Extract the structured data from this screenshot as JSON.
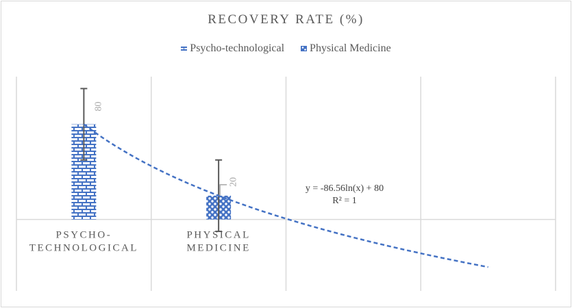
{
  "chart_data": {
    "type": "bar",
    "title": "RECOVERY RATE (%)",
    "categories": [
      "PSYCHO-\nTECHNOLOGICAL",
      "PHYSICAL\nMEDICINE",
      "",
      ""
    ],
    "category_lines": [
      [
        "PSYCHO-",
        "TECHNOLOGICAL"
      ],
      [
        "PHYSICAL",
        "MEDICINE"
      ]
    ],
    "series": [
      {
        "name": "Psycho-technological",
        "category_index": 0,
        "value": 80,
        "error": 30,
        "pattern": "brick",
        "color": "#4472c4",
        "data_label": "80"
      },
      {
        "name": "Physical Medicine",
        "category_index": 1,
        "value": 20,
        "error": 30,
        "pattern": "checker",
        "color": "#4472c4",
        "data_label": "20"
      }
    ],
    "trendline": {
      "type": "logarithmic",
      "a": -86.56,
      "b": 80,
      "equation": "y = -86.56ln(x) + 80",
      "r_squared": "R² = 1",
      "x_range": [
        1,
        4
      ],
      "color": "#4472c4",
      "style": "dashed"
    },
    "xlabel": "",
    "ylabel": "",
    "ylim": [
      -60,
      120
    ],
    "y_axis_visible": false,
    "grid": {
      "vertical": true,
      "horizontal": false
    },
    "legend": {
      "position": "top",
      "entries": [
        "Psycho-technological",
        "Physical Medicine"
      ]
    }
  }
}
